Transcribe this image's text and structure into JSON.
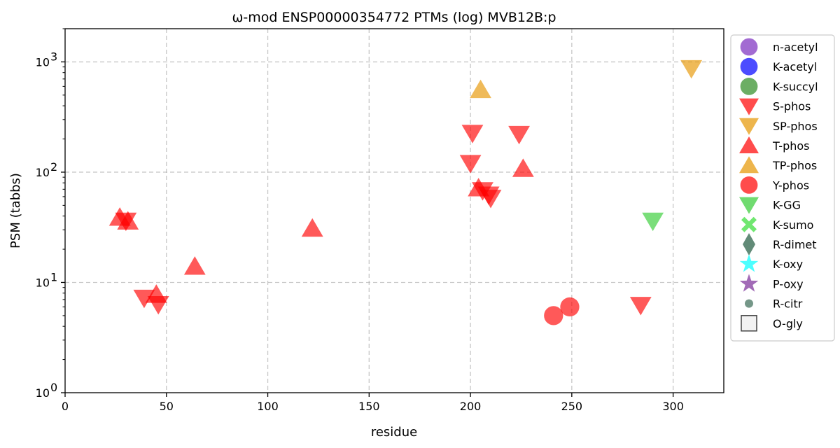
{
  "chart_data": {
    "type": "scatter",
    "title": "ω-mod ENSP00000354772 PTMs (log) MVB12B:p",
    "xlabel": "residue",
    "ylabel": "PSM (tabbs)",
    "xlim": [
      0,
      325
    ],
    "ylim": [
      1,
      2000
    ],
    "yscale": "log",
    "grid": true,
    "legend_position": "outside-right",
    "x_ticks": [
      0,
      50,
      100,
      150,
      200,
      250,
      300
    ],
    "x_tick_labels": [
      "0",
      "50",
      "100",
      "150",
      "200",
      "250",
      "300"
    ],
    "y_ticks": [
      1,
      10,
      100,
      1000
    ],
    "y_tick_labels": [
      "10",
      "10",
      "10",
      "10"
    ],
    "y_tick_exponents": [
      "0",
      "1",
      "2",
      "3"
    ],
    "series": [
      {
        "name": "n-acetyl",
        "marker": "circle",
        "color": "#7b2cbf",
        "points": []
      },
      {
        "name": "K-acetyl",
        "marker": "circle",
        "color": "#0000ff",
        "points": []
      },
      {
        "name": "K-succyl",
        "marker": "circle",
        "color": "#2e8b22",
        "points": []
      },
      {
        "name": "S-phos",
        "marker": "triangle-down",
        "color": "#ff0000",
        "points": [
          [
            30,
            36
          ],
          [
            39,
            7.2
          ],
          [
            46,
            6.3
          ],
          [
            200,
            120
          ],
          [
            201,
            225
          ],
          [
            206,
            68
          ],
          [
            209,
            62
          ],
          [
            210,
            58
          ],
          [
            224,
            220
          ],
          [
            284,
            6.2
          ]
        ]
      },
      {
        "name": "SP-phos",
        "marker": "triangle-down",
        "color": "#e69500",
        "points": [
          [
            309,
            870
          ]
        ]
      },
      {
        "name": "T-phos",
        "marker": "triangle-up",
        "color": "#ff0000",
        "points": [
          [
            27,
            39
          ],
          [
            31,
            36
          ],
          [
            45,
            7.8
          ],
          [
            64,
            14
          ],
          [
            122,
            31
          ],
          [
            204,
            72
          ],
          [
            226,
            108
          ]
        ]
      },
      {
        "name": "TP-phos",
        "marker": "triangle-up",
        "color": "#e69500",
        "points": [
          [
            205,
            560
          ]
        ]
      },
      {
        "name": "Y-phos",
        "marker": "circle",
        "color": "#ff0000",
        "points": [
          [
            241,
            5
          ],
          [
            249,
            6
          ]
        ]
      },
      {
        "name": "K-GG",
        "marker": "triangle-down",
        "color": "#33cc33",
        "points": [
          [
            290,
            36
          ]
        ]
      },
      {
        "name": "K-sumo",
        "marker": "x",
        "color": "#33dd33",
        "points": []
      },
      {
        "name": "R-dimet",
        "marker": "diamond",
        "color": "#1f5a3f",
        "points": []
      },
      {
        "name": "K-oxy",
        "marker": "star",
        "color": "#00ffff",
        "points": []
      },
      {
        "name": "P-oxy",
        "marker": "star",
        "color": "#7b2c99",
        "points": []
      },
      {
        "name": "R-citr",
        "marker": "small-circle",
        "color": "#3a6b55",
        "points": []
      },
      {
        "name": "O-gly",
        "marker": "square-open",
        "color": "#444444",
        "points": []
      }
    ]
  }
}
